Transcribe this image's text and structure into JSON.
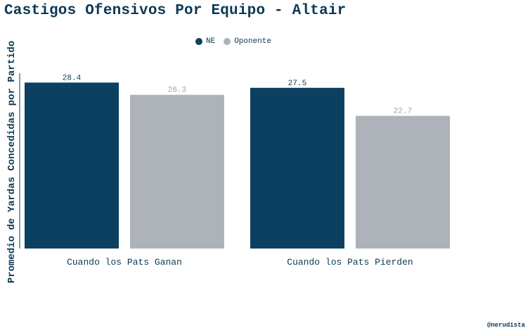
{
  "chart_data": {
    "type": "bar",
    "title": "Castigos Ofensivos Por Equipo - Altair",
    "xlabel": "",
    "ylabel": "Promedio de Yardas Concedidas por Partido",
    "categories": [
      "Cuando los Pats Ganan",
      "Cuando los Pats Pierden"
    ],
    "series": [
      {
        "name": "NE",
        "values": [
          28.4,
          27.5
        ],
        "labels": [
          "28.4",
          "27.5"
        ],
        "color": "#0b4060"
      },
      {
        "name": "Oponente",
        "values": [
          26.3,
          22.7
        ],
        "labels": [
          "26.3",
          "22.7"
        ],
        "color": "#adb3b9"
      }
    ],
    "ylim": [
      0,
      30
    ],
    "grid": false,
    "legend_position": "top-center"
  },
  "credit": "@nerudista"
}
